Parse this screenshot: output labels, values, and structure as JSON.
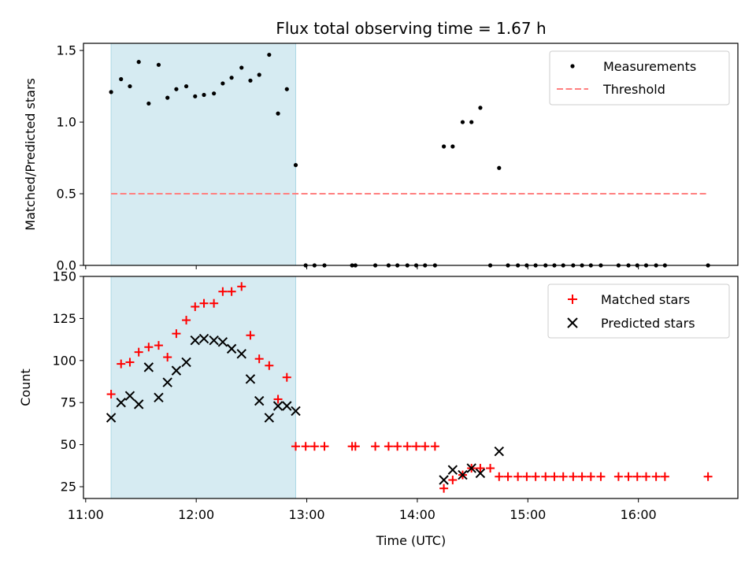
{
  "chart_data": [
    {
      "type": "scatter",
      "title": "Flux total observing time = 1.67 h",
      "ylabel": "Matched/Predicted stars",
      "xlabel": "",
      "xlim": [
        10.98,
        16.9
      ],
      "ylim": [
        0,
        1.55
      ],
      "yticks": [
        0.0,
        0.5,
        1.0,
        1.5
      ],
      "ytick_labels": [
        "0.0",
        "0.5",
        "1.0",
        "1.5"
      ],
      "shaded_x_range": [
        11.23,
        12.9
      ],
      "shade_color": "#add8e6",
      "legend_position": "upper right",
      "series": [
        {
          "name": "Measurements",
          "kind": "points",
          "color": "#000000",
          "x": [
            11.23,
            11.32,
            11.4,
            11.48,
            11.57,
            11.66,
            11.74,
            11.82,
            11.91,
            11.99,
            12.07,
            12.16,
            12.24,
            12.32,
            12.41,
            12.49,
            12.57,
            12.66,
            12.74,
            12.82,
            12.9,
            12.99,
            13.07,
            13.16,
            13.41,
            13.44,
            13.62,
            13.74,
            13.82,
            13.91,
            13.99,
            14.07,
            14.16,
            14.24,
            14.32,
            14.41,
            14.49,
            14.57,
            14.66,
            14.74,
            14.82,
            14.91,
            14.99,
            15.07,
            15.16,
            15.24,
            15.32,
            15.41,
            15.49,
            15.57,
            15.66,
            15.82,
            15.91,
            15.99,
            16.07,
            16.16,
            16.24,
            16.63
          ],
          "y": [
            1.21,
            1.3,
            1.25,
            1.42,
            1.13,
            1.4,
            1.17,
            1.23,
            1.25,
            1.18,
            1.19,
            1.2,
            1.27,
            1.31,
            1.38,
            1.29,
            1.33,
            1.47,
            1.06,
            1.23,
            0.7,
            0.0,
            0.0,
            0.0,
            0.0,
            0.0,
            0.0,
            0.0,
            0.0,
            0.0,
            0.0,
            0.0,
            0.0,
            0.83,
            0.83,
            1.0,
            1.0,
            1.1,
            0.0,
            0.68,
            0.0,
            0.0,
            0.0,
            0.0,
            0.0,
            0.0,
            0.0,
            0.0,
            0.0,
            0.0,
            0.0,
            0.0,
            0.0,
            0.0,
            0.0,
            0.0,
            0.0,
            0.0
          ]
        },
        {
          "name": "Threshold",
          "kind": "dashed-line",
          "color": "#ff7f7f",
          "x": [
            11.23,
            16.63
          ],
          "y": [
            0.5,
            0.5
          ]
        }
      ]
    },
    {
      "type": "scatter",
      "title": "",
      "ylabel": "Count",
      "xlabel": "Time (UTC)",
      "xlim": [
        10.98,
        16.9
      ],
      "ylim": [
        18,
        150
      ],
      "yticks": [
        25,
        50,
        75,
        100,
        125,
        150
      ],
      "ytick_labels": [
        "25",
        "50",
        "75",
        "100",
        "125",
        "150"
      ],
      "xticks": [
        11,
        12,
        13,
        14,
        15,
        16
      ],
      "xtick_labels": [
        "11:00",
        "12:00",
        "13:00",
        "14:00",
        "15:00",
        "16:00"
      ],
      "shaded_x_range": [
        11.23,
        12.9
      ],
      "shade_color": "#add8e6",
      "legend_position": "upper right",
      "series": [
        {
          "name": "Matched stars",
          "kind": "plus",
          "color": "#ff0000",
          "x": [
            11.23,
            11.32,
            11.4,
            11.48,
            11.57,
            11.66,
            11.74,
            11.82,
            11.91,
            11.99,
            12.07,
            12.16,
            12.24,
            12.32,
            12.41,
            12.49,
            12.57,
            12.66,
            12.74,
            12.82,
            12.9,
            12.99,
            13.07,
            13.16,
            13.41,
            13.44,
            13.62,
            13.74,
            13.82,
            13.91,
            13.99,
            14.07,
            14.16,
            14.24,
            14.32,
            14.41,
            14.49,
            14.57,
            14.66,
            14.74,
            14.82,
            14.91,
            14.99,
            15.07,
            15.16,
            15.24,
            15.32,
            15.41,
            15.49,
            15.57,
            15.66,
            15.82,
            15.91,
            15.99,
            16.07,
            16.16,
            16.24,
            16.63
          ],
          "y": [
            80,
            98,
            99,
            105,
            108,
            109,
            102,
            116,
            124,
            132,
            134,
            134,
            141,
            141,
            144,
            115,
            101,
            97,
            77,
            90,
            49,
            49,
            49,
            49,
            49,
            49,
            49,
            49,
            49,
            49,
            49,
            49,
            49,
            24,
            29,
            32,
            36,
            36,
            36,
            31,
            31,
            31,
            31,
            31,
            31,
            31,
            31,
            31,
            31,
            31,
            31,
            31,
            31,
            31,
            31,
            31,
            31,
            31
          ]
        },
        {
          "name": "Predicted stars",
          "kind": "x",
          "color": "#000000",
          "x": [
            11.23,
            11.32,
            11.4,
            11.48,
            11.57,
            11.66,
            11.74,
            11.82,
            11.91,
            11.99,
            12.07,
            12.16,
            12.24,
            12.32,
            12.41,
            12.49,
            12.57,
            12.66,
            12.74,
            12.82,
            12.9,
            14.24,
            14.32,
            14.41,
            14.49,
            14.57,
            14.74
          ],
          "y": [
            66,
            75,
            79,
            74,
            96,
            78,
            87,
            94,
            99,
            112,
            113,
            112,
            111,
            107,
            104,
            89,
            76,
            66,
            73,
            73,
            70,
            29,
            35,
            32,
            36,
            33,
            46
          ]
        }
      ]
    }
  ]
}
